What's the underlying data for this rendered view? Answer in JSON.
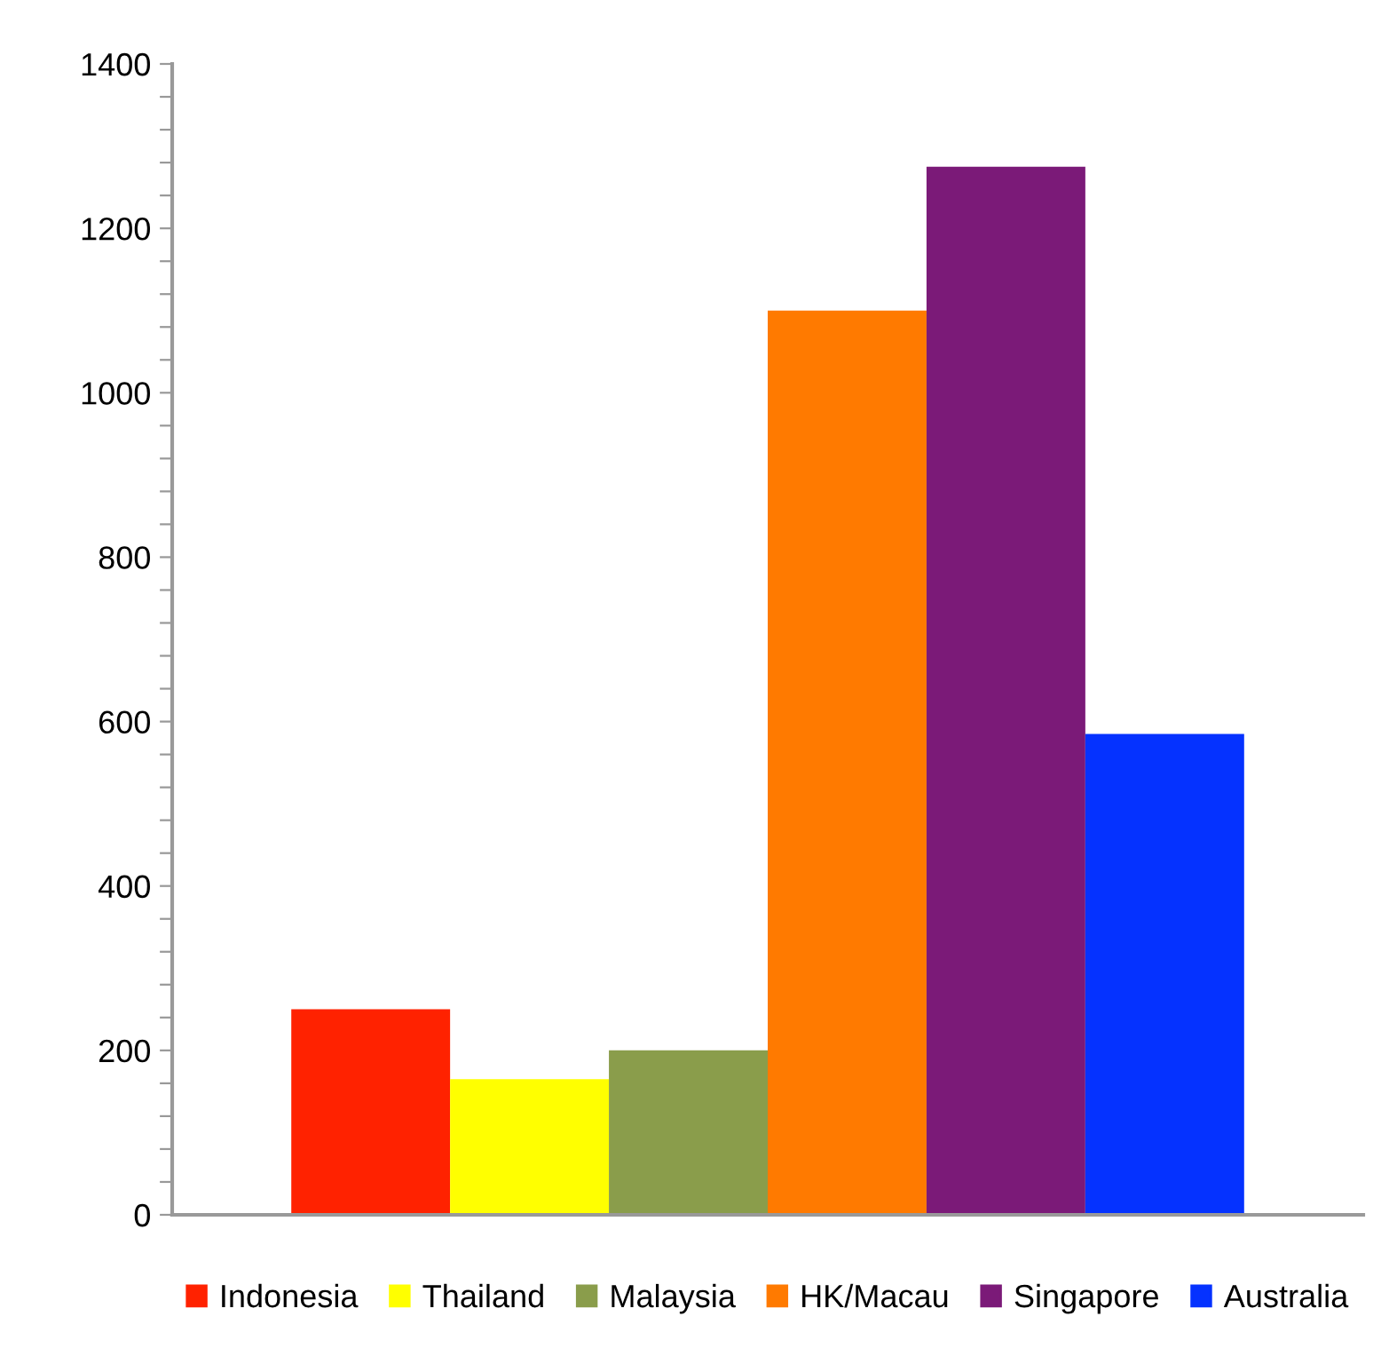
{
  "chart_data": {
    "type": "bar",
    "categories": [
      null
    ],
    "series": [
      {
        "name": "Indonesia",
        "color": "#ff2200",
        "values": [
          250
        ]
      },
      {
        "name": "Thailand",
        "color": "#ffff00",
        "values": [
          165
        ]
      },
      {
        "name": "Malaysia",
        "color": "#8a9d4b",
        "values": [
          200
        ]
      },
      {
        "name": "HK/Macau",
        "color": "#ff7a00",
        "values": [
          1100
        ]
      },
      {
        "name": "Singapore",
        "color": "#7b1a78",
        "values": [
          1275
        ]
      },
      {
        "name": "Australia",
        "color": "#0532ff",
        "values": [
          585
        ]
      }
    ],
    "ylim": [
      0,
      1400
    ],
    "yticks": [
      0,
      {
        "value": 40,
        "label": null
      },
      {
        "value": 80,
        "label": null
      },
      {
        "value": 120,
        "label": null
      },
      {
        "value": 160,
        "label": null
      },
      200,
      {
        "value": 240,
        "label": null
      },
      {
        "value": 280,
        "label": null
      },
      {
        "value": 320,
        "label": null
      },
      {
        "value": 360,
        "label": null
      },
      400,
      {
        "value": 440,
        "label": null
      },
      {
        "value": 480,
        "label": null
      },
      {
        "value": 520,
        "label": null
      },
      {
        "value": 560,
        "label": null
      },
      600,
      {
        "value": 640,
        "label": null
      },
      {
        "value": 680,
        "label": null
      },
      {
        "value": 720,
        "label": null
      },
      {
        "value": 760,
        "label": null
      },
      800,
      {
        "value": 840,
        "label": null
      },
      {
        "value": 880,
        "label": null
      },
      {
        "value": 920,
        "label": null
      },
      {
        "value": 960,
        "label": null
      },
      1000,
      {
        "value": 1040,
        "label": null
      },
      {
        "value": 1080,
        "label": null
      },
      {
        "value": 1120,
        "label": null
      },
      {
        "value": 1160,
        "label": null
      },
      1200,
      {
        "value": 1240,
        "label": null
      },
      {
        "value": 1280,
        "label": null
      },
      {
        "value": 1320,
        "label": null
      },
      {
        "value": 1360,
        "label": null
      },
      1400
    ],
    "grid": false,
    "legend": "bottom"
  }
}
